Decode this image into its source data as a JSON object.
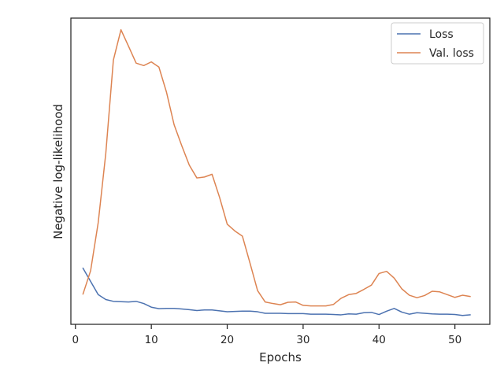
{
  "chart_data": {
    "type": "line",
    "title": "",
    "xlabel": "Epochs",
    "ylabel": "Negative log-likelihood",
    "xlim": [
      -0.6,
      54.6
    ],
    "ylim": [
      0,
      1
    ],
    "xticks": [
      0,
      10,
      20,
      30,
      40,
      50
    ],
    "yticks": [],
    "grid": false,
    "legend_position": "top-right",
    "x": [
      1,
      2,
      3,
      4,
      5,
      6,
      7,
      8,
      9,
      10,
      11,
      12,
      13,
      14,
      15,
      16,
      17,
      18,
      19,
      20,
      21,
      22,
      23,
      24,
      25,
      26,
      27,
      28,
      29,
      30,
      31,
      32,
      33,
      34,
      35,
      36,
      37,
      38,
      39,
      40,
      41,
      42,
      43,
      44,
      45,
      46,
      47,
      48,
      49,
      50,
      51,
      52
    ],
    "series": [
      {
        "name": "Loss",
        "color": "#4c72b0",
        "values": [
          0.183,
          0.14,
          0.097,
          0.081,
          0.075,
          0.074,
          0.073,
          0.075,
          0.068,
          0.056,
          0.051,
          0.052,
          0.052,
          0.05,
          0.048,
          0.045,
          0.047,
          0.047,
          0.044,
          0.041,
          0.042,
          0.043,
          0.043,
          0.041,
          0.036,
          0.036,
          0.036,
          0.035,
          0.035,
          0.035,
          0.033,
          0.033,
          0.033,
          0.032,
          0.031,
          0.034,
          0.033,
          0.038,
          0.039,
          0.032,
          0.043,
          0.052,
          0.04,
          0.033,
          0.038,
          0.036,
          0.034,
          0.033,
          0.033,
          0.032,
          0.029,
          0.031
        ]
      },
      {
        "name": "Val. loss",
        "color": "#dd8452",
        "values": [
          0.099,
          0.175,
          0.332,
          0.558,
          0.863,
          0.962,
          0.908,
          0.853,
          0.845,
          0.857,
          0.84,
          0.758,
          0.652,
          0.584,
          0.52,
          0.478,
          0.481,
          0.49,
          0.414,
          0.327,
          0.305,
          0.288,
          0.2,
          0.11,
          0.073,
          0.068,
          0.064,
          0.072,
          0.073,
          0.062,
          0.06,
          0.06,
          0.06,
          0.065,
          0.085,
          0.097,
          0.101,
          0.114,
          0.128,
          0.166,
          0.173,
          0.151,
          0.116,
          0.095,
          0.087,
          0.094,
          0.108,
          0.106,
          0.097,
          0.088,
          0.095,
          0.091
        ]
      }
    ]
  }
}
